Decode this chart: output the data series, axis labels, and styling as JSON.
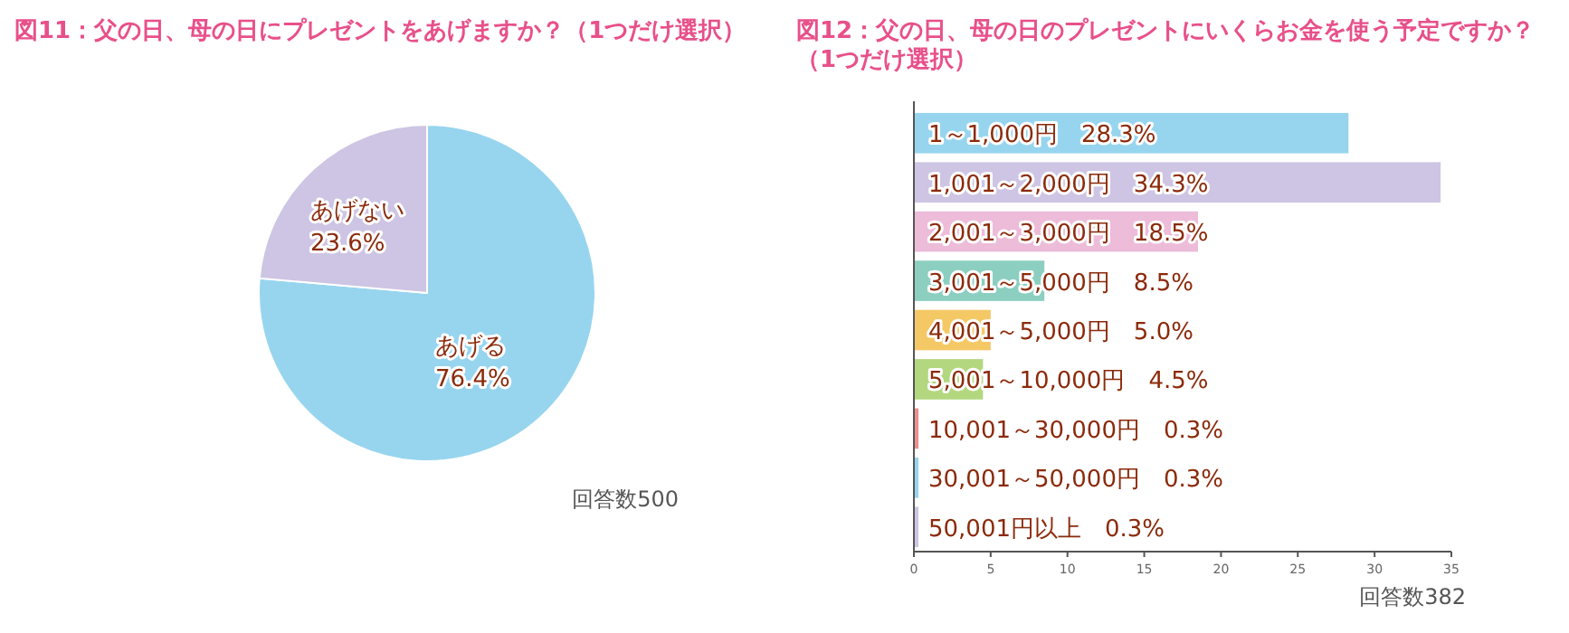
{
  "chart_data": [
    {
      "type": "pie",
      "title": "図11：父の日、母の日にプレゼントをあげますか？（1つだけ選択）",
      "categories": [
        "あげる",
        "あげない"
      ],
      "values": [
        76.4,
        23.6
      ],
      "value_labels": [
        "76.4%",
        "23.6%"
      ],
      "colors": [
        "#97d5ef",
        "#cdc5e3"
      ],
      "annotations": [
        "回答数500"
      ]
    },
    {
      "type": "bar",
      "orientation": "horizontal",
      "title": "図12：父の日、母の日のプレゼントにいくらお金を使う予定ですか？（1つだけ選択）",
      "categories": [
        "1～1,000円",
        "1,001～2,000円",
        "2,001～3,000円",
        "3,001～5,000円",
        "4,001～5,000円",
        "5,001～10,000円",
        "10,001～30,000円",
        "30,001～50,000円",
        "50,001円以上"
      ],
      "values": [
        28.3,
        34.3,
        18.5,
        8.5,
        5.0,
        4.5,
        0.3,
        0.3,
        0.3
      ],
      "value_labels": [
        "28.3%",
        "34.3%",
        "18.5%",
        "8.5%",
        "5.0%",
        "4.5%",
        "0.3%",
        "0.3%",
        "0.3%"
      ],
      "colors": [
        "#97d5ef",
        "#cdc5e3",
        "#ecbcd9",
        "#8ccfc1",
        "#f5c866",
        "#b3d77f",
        "#ef8f8f",
        "#97d5ef",
        "#cdc5e3"
      ],
      "xlim": [
        0,
        35
      ],
      "xticks": [
        0,
        5,
        10,
        15,
        20,
        25,
        30,
        35
      ],
      "annotations": [
        "回答数382"
      ]
    }
  ]
}
